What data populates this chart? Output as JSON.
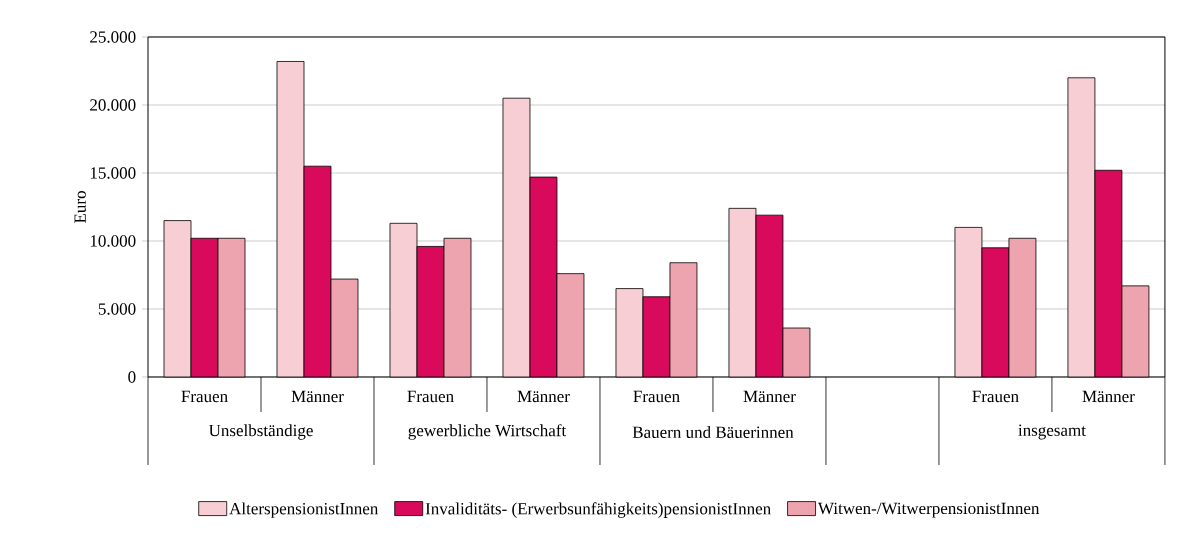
{
  "chart_data": {
    "type": "bar",
    "ylabel": "Euro",
    "categories": [
      "Frauen",
      "Männer",
      "Frauen",
      "Männer",
      "Frauen",
      "Männer",
      null,
      "Frauen",
      "Männer"
    ],
    "annotations": [
      "Unselbständige",
      "gewerbliche Wirtschaft",
      "Bauern und Bäuerinnen",
      "insgesamt"
    ],
    "series": [
      {
        "name": "AlterspensionistInnen",
        "color": "#f6ced3",
        "values": [
          11500,
          23200,
          11300,
          20500,
          6500,
          12400,
          null,
          11000,
          22000
        ]
      },
      {
        "name": "Invaliditäts- (Erwerbsunfähigkeits)pensionistInnen",
        "color": "#d90a5c",
        "values": [
          10200,
          15500,
          9600,
          14700,
          5900,
          11900,
          null,
          9500,
          15200
        ]
      },
      {
        "name": "Witwen-/WitwerpensionistInnen",
        "color": "#eda4ae",
        "values": [
          10200,
          7200,
          10200,
          7600,
          8400,
          3600,
          null,
          10200,
          6700
        ]
      }
    ],
    "ylim": [
      0,
      25000
    ],
    "yticks": [
      0,
      {
        "value": 5000,
        "label": "5.000"
      },
      {
        "value": 10000,
        "label": "10.000"
      },
      {
        "value": 15000,
        "label": "15.000"
      },
      {
        "value": 20000,
        "label": "20.000"
      },
      {
        "value": 25000,
        "label": "25.000"
      }
    ],
    "grid": "y",
    "legend": "bottom"
  }
}
